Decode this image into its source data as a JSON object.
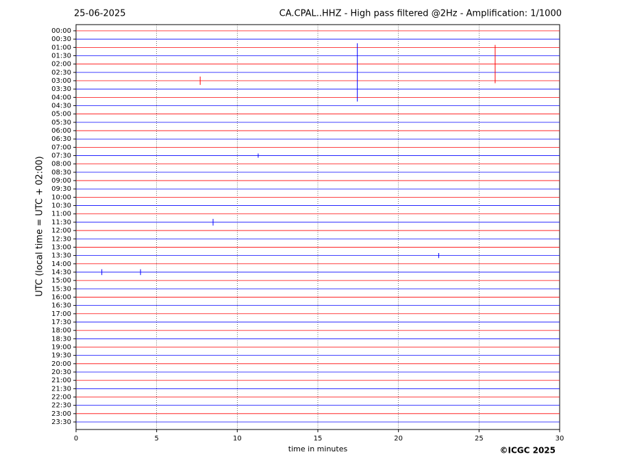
{
  "chart_data": {
    "type": "helicorder",
    "date": "25-06-2025",
    "title": "CA.CPAL..HHZ - High pass filtered @2Hz - Amplification: 1/1000",
    "x_label": "time in minutes",
    "y_label": "UTC (local time = UTC + 02:00)",
    "copyright": "©ICGC 2025",
    "categories": [
      "00:00",
      "00:30",
      "01:00",
      "01:30",
      "02:00",
      "02:30",
      "03:00",
      "03:30",
      "04:00",
      "04:30",
      "05:00",
      "05:30",
      "06:00",
      "06:30",
      "07:00",
      "07:30",
      "08:00",
      "08:30",
      "09:00",
      "09:30",
      "10:00",
      "10:30",
      "11:00",
      "11:30",
      "12:00",
      "12:30",
      "13:00",
      "13:30",
      "14:00",
      "14:30",
      "15:00",
      "15:30",
      "16:00",
      "16:30",
      "17:00",
      "17:30",
      "18:00",
      "18:30",
      "19:00",
      "19:30",
      "20:00",
      "20:30",
      "21:00",
      "21:30",
      "22:00",
      "22:30",
      "23:00",
      "23:30"
    ],
    "colors": [
      "#ff0000",
      "#0000ff"
    ],
    "xlim": [
      0,
      30
    ],
    "xticks": [
      0,
      5,
      10,
      15,
      20,
      25,
      30
    ],
    "grid": true,
    "events": [
      {
        "row": 5,
        "x": 17.45,
        "amplitude": 3.5
      },
      {
        "row": 4,
        "x": 26.0,
        "amplitude": 2.3
      },
      {
        "row": 6,
        "x": 7.7,
        "amplitude": 0.5
      },
      {
        "row": 15,
        "x": 11.3,
        "amplitude": 0.25
      },
      {
        "row": 23,
        "x": 8.5,
        "amplitude": 0.4
      },
      {
        "row": 27,
        "x": 22.5,
        "amplitude": 0.3
      },
      {
        "row": 29,
        "x": 1.6,
        "amplitude": 0.35
      },
      {
        "row": 29,
        "x": 4.0,
        "amplitude": 0.35
      }
    ]
  }
}
